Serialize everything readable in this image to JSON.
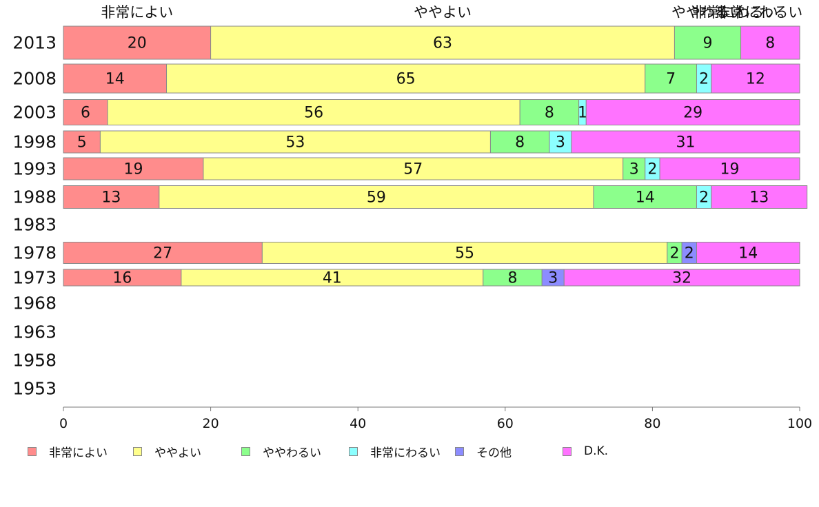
{
  "chart_data": {
    "type": "bar",
    "orientation": "horizontal",
    "stacked": true,
    "categories": [
      "2013",
      "2008",
      "2003",
      "1998",
      "1993",
      "1988",
      "1983",
      "1978",
      "1973",
      "1968",
      "1963",
      "1958",
      "1953"
    ],
    "series": [
      {
        "name": "非常によい",
        "color": "#ff8c8c",
        "values": [
          20,
          14,
          6,
          5,
          19,
          13,
          null,
          27,
          16,
          null,
          null,
          null,
          null
        ]
      },
      {
        "name": "ややよい",
        "color": "#ffff8c",
        "values": [
          63,
          65,
          56,
          53,
          57,
          59,
          null,
          55,
          41,
          null,
          null,
          null,
          null
        ]
      },
      {
        "name": "ややわるい",
        "color": "#8cff8c",
        "values": [
          9,
          7,
          8,
          8,
          3,
          14,
          null,
          2,
          8,
          null,
          null,
          null,
          null
        ]
      },
      {
        "name": "非常にわるい",
        "color": "#8cffff",
        "values": [
          0,
          2,
          1,
          3,
          2,
          2,
          null,
          0,
          0,
          null,
          null,
          null,
          null
        ]
      },
      {
        "name": "その他",
        "color": "#8c8cff",
        "values": [
          0,
          0,
          0,
          0,
          0,
          0,
          null,
          2,
          3,
          null,
          null,
          null,
          null
        ]
      },
      {
        "name": "D.K.",
        "color": "#ff73ff",
        "values": [
          8,
          12,
          29,
          31,
          19,
          13,
          null,
          14,
          32,
          null,
          null,
          null,
          null
        ]
      }
    ],
    "top_labels": [
      "非常によい",
      "ややよい",
      "ややわるい",
      "非常にわるい",
      "D.K."
    ],
    "xticks": [
      "0",
      "20",
      "40",
      "60",
      "80",
      "100"
    ],
    "xlim": [
      0,
      100
    ],
    "legend_position": "bottom",
    "grid": false
  }
}
